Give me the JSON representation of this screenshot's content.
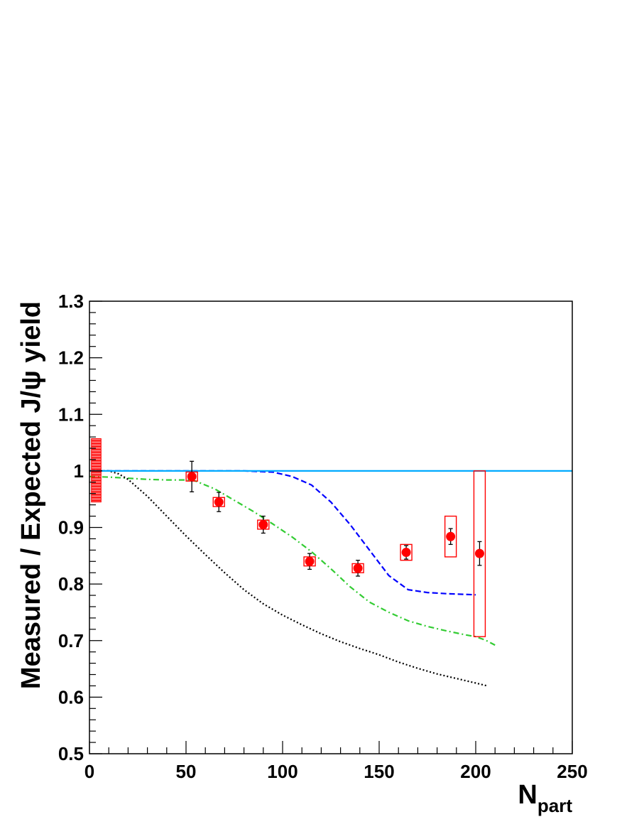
{
  "chart_data": {
    "type": "scatter",
    "title": "",
    "xlabel": "N",
    "xlabel_sub": "part",
    "ylabel": "Measured / Expected J/ψ yield",
    "xlim": [
      0,
      250
    ],
    "ylim": [
      0.5,
      1.3
    ],
    "x_ticks": [
      0,
      50,
      100,
      150,
      200,
      250
    ],
    "x_tick_labels": [
      "0",
      "50",
      "100",
      "150",
      "200",
      "250"
    ],
    "y_ticks": [
      0.5,
      0.6,
      0.7,
      0.8,
      0.9,
      1.0,
      1.1,
      1.2,
      1.3
    ],
    "y_tick_labels": [
      "0.5",
      "0.6",
      "0.7",
      "0.8",
      "0.9",
      "1",
      "1.1",
      "1.2",
      "1.3"
    ],
    "grid": false,
    "legend": "none",
    "data_points": {
      "color": "#ff0000",
      "points": [
        {
          "x": 53,
          "y": 0.99,
          "stat_err": 0.027,
          "sys_low": 0.008,
          "sys_high": 0.008
        },
        {
          "x": 67,
          "y": 0.945,
          "stat_err": 0.017,
          "sys_low": 0.008,
          "sys_high": 0.008
        },
        {
          "x": 90,
          "y": 0.905,
          "stat_err": 0.015,
          "sys_low": 0.008,
          "sys_high": 0.008
        },
        {
          "x": 114,
          "y": 0.84,
          "stat_err": 0.014,
          "sys_low": 0.008,
          "sys_high": 0.008
        },
        {
          "x": 139,
          "y": 0.828,
          "stat_err": 0.014,
          "sys_low": 0.008,
          "sys_high": 0.008
        },
        {
          "x": 164,
          "y": 0.856,
          "stat_err": 0.012,
          "sys_low": 0.014,
          "sys_high": 0.014
        },
        {
          "x": 187,
          "y": 0.884,
          "stat_err": 0.014,
          "sys_low": 0.036,
          "sys_high": 0.036
        },
        {
          "x": 202,
          "y": 0.854,
          "stat_err": 0.021,
          "sys_low": 0.147,
          "sys_high": 0.146
        }
      ]
    },
    "global_uncertainty_band": {
      "x_from": 1,
      "x_to": 6,
      "y_from": 0.945,
      "y_to": 1.057,
      "color": "#ff0000"
    },
    "reference_line": {
      "y": 1.0,
      "color": "#00aaff"
    },
    "series": [
      {
        "color": "#0000ff",
        "style": "dashed",
        "x": [
          0,
          20,
          40,
          60,
          80,
          95,
          105,
          115,
          125,
          135,
          145,
          155,
          165,
          175,
          185,
          200
        ],
        "y": [
          1.0,
          1.0,
          1.0,
          1.0,
          1.0,
          0.998,
          0.99,
          0.975,
          0.945,
          0.905,
          0.86,
          0.815,
          0.79,
          0.785,
          0.783,
          0.781
        ]
      },
      {
        "color": "#33cc33",
        "style": "dash-dot",
        "x": [
          0,
          10,
          20,
          30,
          40,
          50,
          55,
          65,
          75,
          85,
          95,
          105,
          115,
          125,
          135,
          145,
          155,
          165,
          175,
          185,
          195,
          200,
          205,
          210
        ],
        "y": [
          0.99,
          0.989,
          0.987,
          0.985,
          0.984,
          0.984,
          0.982,
          0.968,
          0.948,
          0.928,
          0.906,
          0.883,
          0.857,
          0.827,
          0.795,
          0.768,
          0.75,
          0.735,
          0.725,
          0.717,
          0.71,
          0.707,
          0.701,
          0.692
        ]
      },
      {
        "color": "#000000",
        "style": "dotted",
        "x": [
          0,
          10,
          15,
          20,
          30,
          40,
          50,
          60,
          70,
          80,
          90,
          100,
          110,
          120,
          130,
          140,
          150,
          160,
          170,
          180,
          190,
          200,
          206
        ],
        "y": [
          1.0,
          1.0,
          0.995,
          0.985,
          0.955,
          0.92,
          0.885,
          0.852,
          0.82,
          0.79,
          0.765,
          0.745,
          0.728,
          0.712,
          0.698,
          0.686,
          0.675,
          0.662,
          0.651,
          0.641,
          0.633,
          0.625,
          0.62
        ]
      }
    ]
  }
}
